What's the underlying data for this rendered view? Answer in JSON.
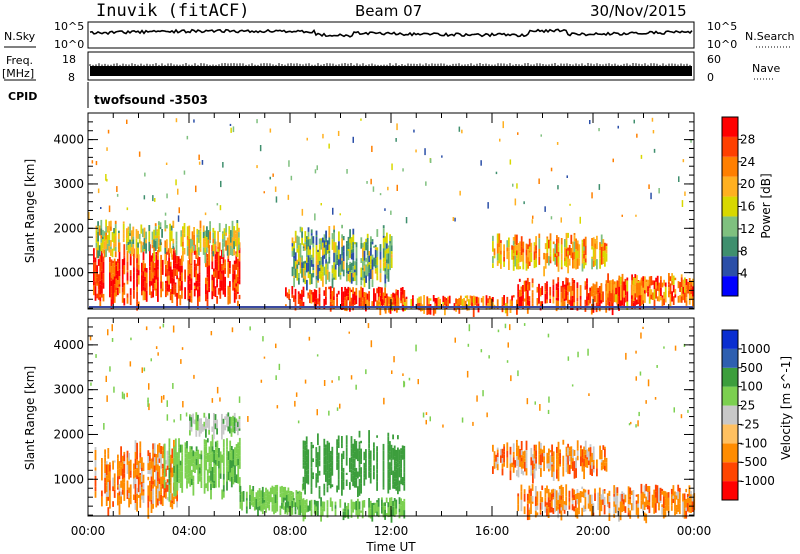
{
  "header": {
    "station": "Inuvik (fitACF)",
    "beam": "Beam 07",
    "date": "30/Nov/2015"
  },
  "panels": {
    "nsky_label": "N.Sky",
    "nsearch_label": "N.Search",
    "freq_label": "Freq.",
    "freq_unit": "[MHz]",
    "nave_label": "Nave",
    "cpid_label": "CPID",
    "cpid_value": "twofsound -3503",
    "nsky_ticks": [
      "10^5",
      "10^0"
    ],
    "nsearch_ticks": [
      "10^5",
      "10^0"
    ],
    "freq_ticks": [
      "18",
      "8"
    ],
    "nave_ticks": [
      "60",
      "0"
    ]
  },
  "colors": {
    "power": [
      "#0000ff",
      "#2b4fa8",
      "#3f8f6e",
      "#7fc07f",
      "#d8d800",
      "#ffb020",
      "#ff7f00",
      "#ff4000",
      "#ff0000"
    ],
    "velocity": [
      "#ff0000",
      "#ff4500",
      "#ff8c00",
      "#ffc060",
      "#c8c8c8",
      "#7cd050",
      "#3c9e3c",
      "#2e5fb0",
      "#0a2ed0"
    ]
  },
  "chart_data": [
    {
      "type": "heatmap",
      "name": "power",
      "xlabel": "Time UT",
      "ylabel": "Slant Range [km]",
      "x_ticks": [
        "00:00",
        "04:00",
        "08:00",
        "12:00",
        "16:00",
        "20:00",
        "00:00"
      ],
      "xlim_hours": [
        0,
        24
      ],
      "ylim": [
        180,
        4600
      ],
      "y_ticks": [
        1000,
        2000,
        3000,
        4000
      ],
      "colorbar": {
        "label": "Power [dB]",
        "range": [
          0,
          32
        ],
        "ticks": [
          4,
          8,
          12,
          16,
          20,
          24,
          28
        ]
      },
      "regions": [
        {
          "t0": 0.2,
          "t1": 6.0,
          "r0": 300,
          "r1": 1700,
          "v": 28
        },
        {
          "t0": 0.3,
          "t1": 6.0,
          "r0": 1400,
          "r1": 2200,
          "v": 16
        },
        {
          "t0": 7.8,
          "t1": 12.5,
          "r0": 200,
          "r1": 700,
          "v": 28
        },
        {
          "t0": 8.0,
          "t1": 12.0,
          "r0": 700,
          "r1": 2100,
          "v": 12
        },
        {
          "t0": 11.5,
          "t1": 17.0,
          "r0": 200,
          "r1": 500,
          "v": 24
        },
        {
          "t0": 16.0,
          "t1": 20.5,
          "r0": 1100,
          "r1": 1900,
          "v": 20
        },
        {
          "t0": 17.0,
          "t1": 22.0,
          "r0": 200,
          "r1": 900,
          "v": 28
        },
        {
          "t0": 20.5,
          "t1": 24.0,
          "r0": 300,
          "r1": 1000,
          "v": 24
        }
      ]
    },
    {
      "type": "heatmap",
      "name": "velocity",
      "xlabel": "Time UT",
      "ylabel": "Slant Range [km]",
      "x_ticks": [
        "00:00",
        "04:00",
        "08:00",
        "12:00",
        "16:00",
        "20:00",
        "00:00"
      ],
      "xlim_hours": [
        0,
        24
      ],
      "ylim": [
        180,
        4600
      ],
      "y_ticks": [
        1000,
        2000,
        3000,
        4000
      ],
      "colorbar": {
        "label": "Velocity [m s^-1]",
        "ticks": [
          "1000",
          "500",
          "100",
          "25",
          "-25",
          "-100",
          "-500",
          "-1000"
        ]
      },
      "regions": [
        {
          "t0": 0.2,
          "t1": 3.5,
          "r0": 300,
          "r1": 1900,
          "v": -100
        },
        {
          "t0": 3.0,
          "t1": 6.0,
          "r0": 700,
          "r1": 2000,
          "v": 100
        },
        {
          "t0": 4.0,
          "t1": 6.0,
          "r0": 2000,
          "r1": 2500,
          "v": 25
        },
        {
          "t0": 6.0,
          "t1": 8.5,
          "r0": 300,
          "r1": 900,
          "v": 100
        },
        {
          "t0": 8.5,
          "t1": 12.5,
          "r0": 700,
          "r1": 2100,
          "v": 500
        },
        {
          "t0": 7.8,
          "t1": 12.5,
          "r0": 200,
          "r1": 600,
          "v": 100
        },
        {
          "t0": 16.0,
          "t1": 20.5,
          "r0": 1100,
          "r1": 1900,
          "v": -100
        },
        {
          "t0": 17.0,
          "t1": 24.0,
          "r0": 200,
          "r1": 900,
          "v": -100
        }
      ]
    }
  ]
}
